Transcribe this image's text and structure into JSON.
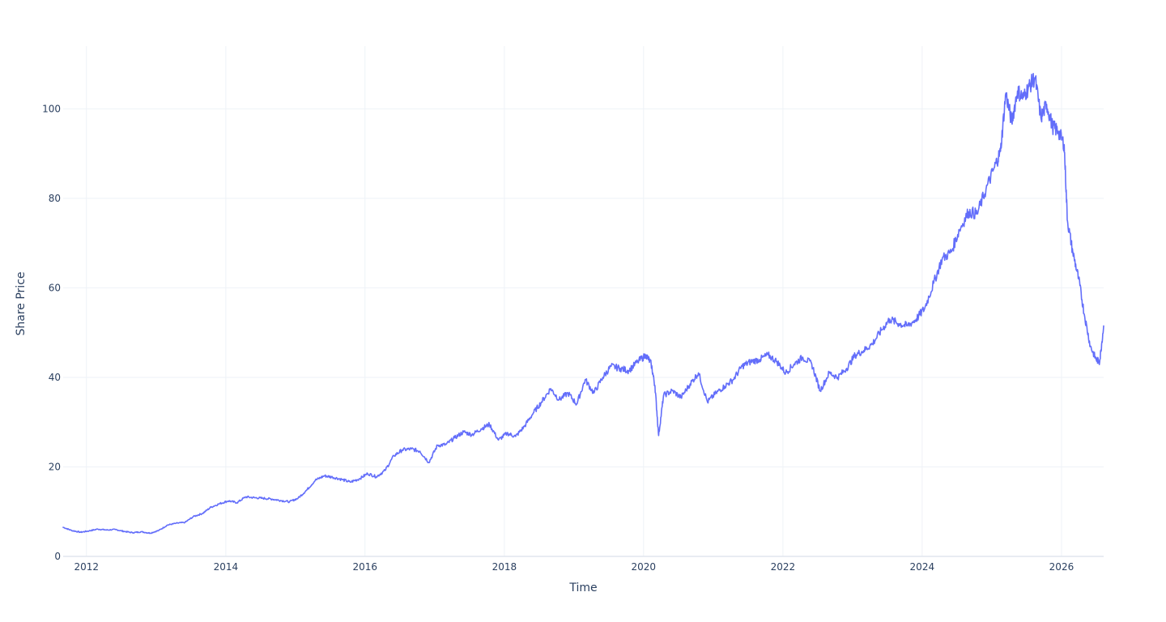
{
  "chart_data": {
    "type": "line",
    "xlabel": "Time",
    "ylabel": "Share Price",
    "xlim": [
      "2011-09-01",
      "2026-08-10"
    ],
    "ylim": [
      0,
      114
    ],
    "x_ticks": [
      "2012",
      "2014",
      "2016",
      "2018",
      "2020",
      "2022",
      "2024",
      "2026"
    ],
    "y_ticks": [
      0,
      20,
      40,
      60,
      80,
      100
    ],
    "grid": true,
    "legend": "none",
    "colors": {
      "series": "#636efa",
      "grid": "#eef2f7",
      "text": "#2a3f5f"
    },
    "series": [
      {
        "x": [
          "2011-09-01",
          "2011-10-15",
          "2011-12-01",
          "2012-01-15",
          "2012-03-01",
          "2012-04-15",
          "2012-06-01",
          "2012-07-15",
          "2012-09-01",
          "2012-10-15",
          "2012-12-01",
          "2013-01-15",
          "2013-03-01",
          "2013-04-15",
          "2013-06-01",
          "2013-07-15",
          "2013-09-01",
          "2013-10-15",
          "2013-12-01",
          "2014-01-15",
          "2014-03-01",
          "2014-04-15",
          "2014-06-01",
          "2014-07-15",
          "2014-09-01",
          "2014-10-15",
          "2014-12-01",
          "2015-01-15",
          "2015-03-01",
          "2015-04-15",
          "2015-06-01",
          "2015-07-15",
          "2015-09-01",
          "2015-10-15",
          "2015-12-01",
          "2016-01-15",
          "2016-03-01",
          "2016-04-15",
          "2016-06-01",
          "2016-07-15",
          "2016-09-01",
          "2016-10-15",
          "2016-12-01",
          "2017-01-15",
          "2017-03-01",
          "2017-04-15",
          "2017-06-01",
          "2017-07-15",
          "2017-09-01",
          "2017-10-15",
          "2017-12-01",
          "2018-01-15",
          "2018-03-01",
          "2018-04-15",
          "2018-06-01",
          "2018-07-15",
          "2018-09-01",
          "2018-10-15",
          "2018-12-01",
          "2019-01-15",
          "2019-03-01",
          "2019-04-15",
          "2019-06-01",
          "2019-07-15",
          "2019-09-01",
          "2019-10-15",
          "2019-12-01",
          "2020-01-15",
          "2020-02-10",
          "2020-03-01",
          "2020-03-20",
          "2020-04-15",
          "2020-06-01",
          "2020-07-15",
          "2020-09-01",
          "2020-10-15",
          "2020-12-01",
          "2021-01-15",
          "2021-03-01",
          "2021-04-15",
          "2021-06-01",
          "2021-07-15",
          "2021-09-01",
          "2021-10-15",
          "2021-12-01",
          "2022-01-15",
          "2022-03-01",
          "2022-04-15",
          "2022-06-01",
          "2022-07-15",
          "2022-09-01",
          "2022-10-15",
          "2022-12-01",
          "2023-01-15",
          "2023-03-01",
          "2023-04-15",
          "2023-06-01",
          "2023-07-15",
          "2023-09-01",
          "2023-10-15",
          "2023-12-01",
          "2024-01-15",
          "2024-03-01",
          "2024-04-15",
          "2024-06-01",
          "2024-07-15",
          "2024-09-01",
          "2024-10-15",
          "2024-12-01",
          "2025-01-15",
          "2025-02-15",
          "2025-03-15",
          "2025-04-15",
          "2025-05-15",
          "2025-06-15",
          "2025-07-15",
          "2025-08-15",
          "2025-09-15",
          "2025-10-15",
          "2025-11-15",
          "2025-12-15",
          "2026-01-15",
          "2026-02-01",
          "2026-03-01",
          "2026-04-01",
          "2026-05-01",
          "2026-06-01",
          "2026-07-01",
          "2026-07-20",
          "2026-08-10"
        ],
        "y": [
          6.5,
          5.8,
          5.4,
          5.7,
          6.1,
          5.9,
          6.0,
          5.6,
          5.3,
          5.5,
          5.2,
          5.8,
          7.0,
          7.4,
          7.6,
          8.9,
          9.6,
          11.0,
          11.8,
          12.4,
          12.0,
          13.3,
          13.1,
          13.0,
          12.8,
          12.5,
          12.2,
          13.0,
          14.8,
          17.0,
          18.0,
          17.7,
          17.2,
          16.6,
          17.3,
          18.5,
          17.8,
          19.2,
          22.5,
          23.8,
          24.0,
          23.5,
          21.0,
          24.8,
          25.0,
          26.5,
          27.8,
          27.2,
          28.5,
          29.5,
          26.0,
          27.5,
          26.8,
          29.0,
          32.0,
          34.5,
          37.5,
          35.0,
          36.5,
          34.0,
          39.5,
          36.5,
          40.0,
          42.5,
          42.0,
          41.5,
          43.5,
          45.0,
          43.0,
          38.0,
          27.0,
          36.0,
          37.0,
          35.5,
          38.5,
          41.0,
          34.5,
          36.5,
          38.0,
          39.5,
          42.5,
          43.5,
          44.0,
          45.0,
          43.5,
          41.0,
          43.0,
          44.5,
          43.0,
          37.0,
          41.0,
          40.0,
          42.0,
          45.0,
          46.0,
          47.5,
          50.5,
          53.0,
          52.0,
          51.5,
          53.0,
          55.5,
          61.0,
          66.5,
          68.0,
          73.0,
          77.0,
          76.5,
          82.0,
          87.0,
          90.5,
          103.5,
          97.0,
          104.0,
          102.5,
          105.0,
          107.0,
          98.0,
          101.0,
          96.0,
          95.0,
          92.0,
          75.0,
          68.0,
          62.0,
          54.0,
          47.0,
          44.0,
          43.5,
          51.5
        ]
      }
    ]
  }
}
